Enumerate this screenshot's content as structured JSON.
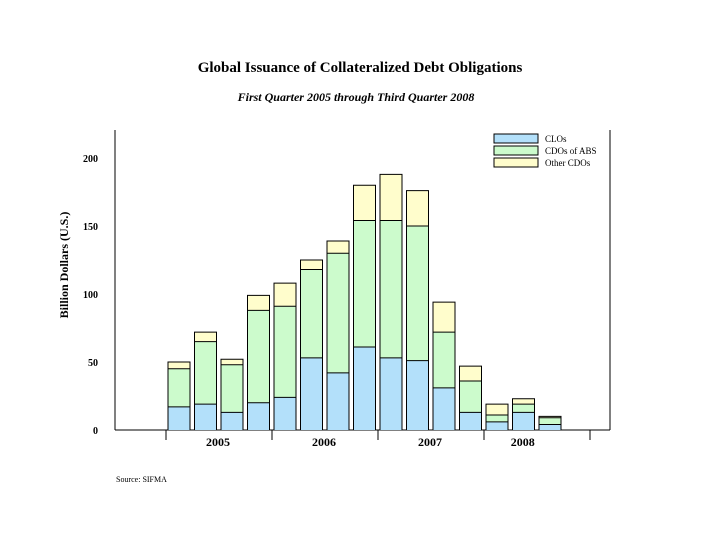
{
  "chart_data": {
    "type": "bar",
    "stacked": true,
    "title": "Global Issuance of Collateralized Debt Obligations",
    "subtitle": "First Quarter 2005 through Third Quarter 2008",
    "ylabel": "Billion Dollars (U.S.)",
    "xlabel": "",
    "ylim": [
      0,
      220
    ],
    "yticks": [
      "0",
      "50",
      "100",
      "150",
      "200"
    ],
    "ytick_values": [
      0,
      50,
      100,
      150,
      200
    ],
    "year_labels": [
      "2005",
      "2006",
      "2007",
      "2008"
    ],
    "categories": [
      "Q1 2005",
      "Q2 2005",
      "Q3 2005",
      "Q4 2005",
      "Q1 2006",
      "Q2 2006",
      "Q3 2006",
      "Q4 2006",
      "Q1 2007",
      "Q2 2007",
      "Q3 2007",
      "Q4 2007",
      "Q1 2008",
      "Q2 2008",
      "Q3 2008"
    ],
    "series": [
      {
        "name": "CLOs",
        "color": "#b3e0fa",
        "values": [
          17,
          19,
          13,
          20,
          24,
          53,
          42,
          61,
          53,
          51,
          31,
          13,
          6,
          13,
          4
        ]
      },
      {
        "name": "CDOs of ABS",
        "color": "#ccfbcc",
        "values": [
          28,
          46,
          35,
          68,
          67,
          65,
          88,
          93,
          101,
          99,
          41,
          23,
          5,
          6,
          5
        ]
      },
      {
        "name": "Other CDOs",
        "color": "#fffdcc",
        "values": [
          5,
          7,
          4,
          11,
          17,
          7,
          9,
          26,
          34,
          26,
          22,
          11,
          8,
          4,
          1
        ]
      }
    ],
    "legend_position": "top-right",
    "source": "Source: SIFMA"
  }
}
